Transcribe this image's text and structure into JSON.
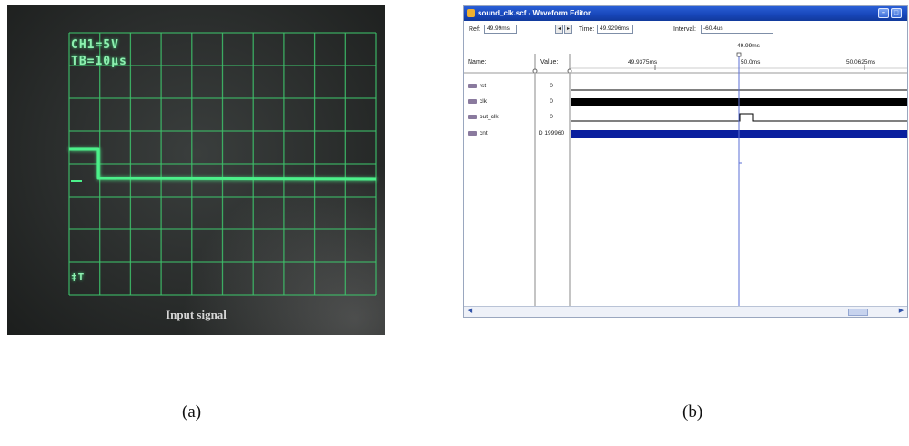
{
  "oscilloscope": {
    "channel_readout": "CH1=5V",
    "timebase_readout": "TB=10µs",
    "trigger_marker": "‡T",
    "caption": "Input signal",
    "trace_color": "#4cf08a",
    "grid_color": "#3ec06a"
  },
  "waveform_editor": {
    "title": "sound_clk.scf - Waveform Editor",
    "toolbar": {
      "ref_label": "Ref:",
      "ref_value": "49.99ms",
      "time_label": "Time:",
      "time_value": "49.9296ms",
      "interval_label": "Interval:",
      "interval_value": "-60.4us"
    },
    "marker_time": "49.99ms",
    "columns": {
      "name": "Name:",
      "value": "Value:"
    },
    "ruler_labels": [
      "49.9375ms",
      "50.0ms",
      "50.0625ms"
    ],
    "signals": [
      {
        "name": "rst",
        "value": "0",
        "kind": "low"
      },
      {
        "name": "clk",
        "value": "0",
        "kind": "dense-clock"
      },
      {
        "name": "out_clk",
        "value": "0",
        "kind": "pulse"
      },
      {
        "name": "cnt",
        "value": "D 199960",
        "kind": "bus"
      }
    ],
    "accent_color": "#1745b8",
    "bus_color": "#0a1f9e"
  },
  "panel_labels": {
    "a": "(a)",
    "b": "(b)"
  }
}
